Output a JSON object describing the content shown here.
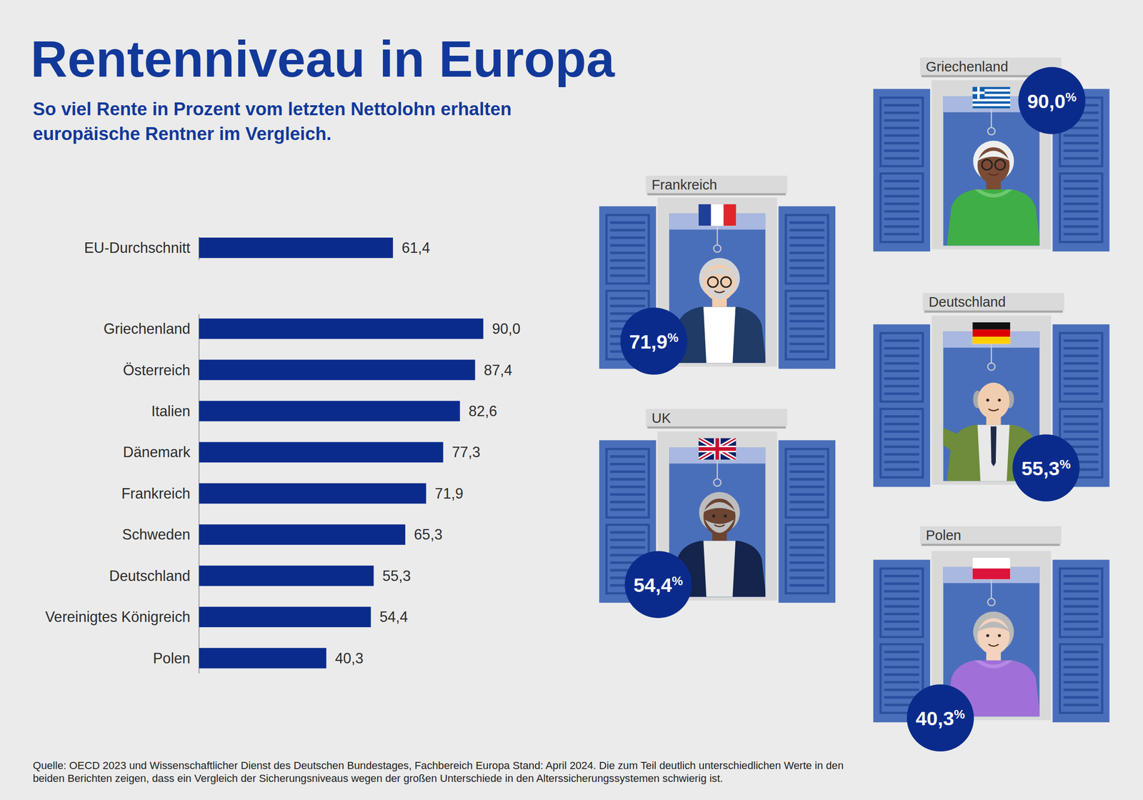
{
  "header": {
    "title": "Rentenniveau in Europa",
    "subtitle": "So viel Rente in Prozent vom letzten Nettolohn erhalten europäische Rentner im Vergleich."
  },
  "chart_data": [
    {
      "type": "bar",
      "orientation": "horizontal",
      "categories": [
        "EU-Durchschnitt"
      ],
      "values": [
        61.4
      ],
      "value_labels": [
        "61,4"
      ],
      "color": "#0b2b8c",
      "xlim": [
        0,
        90
      ],
      "data_labels": true,
      "tick_labels": "y"
    },
    {
      "type": "bar",
      "orientation": "horizontal",
      "categories": [
        "Griechenland",
        "Österreich",
        "Italien",
        "Dänemark",
        "Frankreich",
        "Schweden",
        "Deutschland",
        "Vereinigtes Königreich",
        "Polen"
      ],
      "values": [
        90.0,
        87.4,
        82.6,
        77.3,
        71.9,
        65.3,
        55.3,
        54.4,
        40.3
      ],
      "value_labels": [
        "90,0",
        "87,4",
        "82,6",
        "77,3",
        "71,9",
        "65,3",
        "55,3",
        "54,4",
        "40,3"
      ],
      "color": "#0b2b8c",
      "xlim": [
        0,
        90
      ],
      "data_labels": true,
      "tick_labels": "y"
    }
  ],
  "callouts": [
    {
      "country": "Griechenland",
      "label": "90,0%"
    },
    {
      "country": "Frankreich",
      "label": "71,9%"
    },
    {
      "country": "Deutschland",
      "label": "55,3%"
    },
    {
      "country": "UK",
      "label": "54,4%"
    },
    {
      "country": "Polen",
      "label": "40,3%"
    }
  ],
  "source": "Quelle: OECD 2023 und Wissenschaftlicher Dienst des Deutschen Bundestages, Fachbereich Europa Stand: April 2024. Die zum Teil deutlich unterschiedlichen Werte in den beiden Berichten zeigen, dass ein Vergleich der Sicherungsniveaus wegen der großen Unterschiede in den Alterssicherungssystemen schwierig ist."
}
